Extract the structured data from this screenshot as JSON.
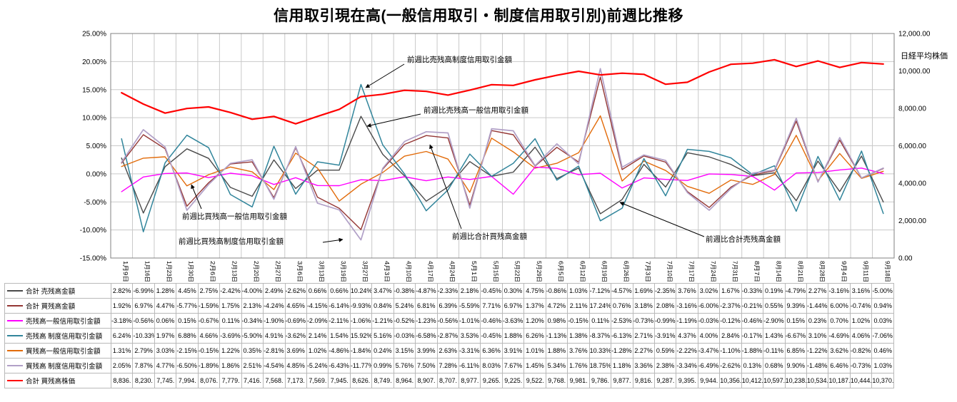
{
  "title": "信用取引現在高(一般信用取引・制度信用取引別)前週比推移",
  "chart_data": {
    "type": "line",
    "categories": [
      "1月9日",
      "1月16日",
      "1月23日",
      "1月30日",
      "2月6日",
      "2月13日",
      "2月20日",
      "2月27日",
      "3月6日",
      "3月13日",
      "3月19日",
      "3月27日",
      "4月3日",
      "4月10日",
      "4月17日",
      "4月24日",
      "5月1日",
      "5月15日",
      "5月22日",
      "5月29日",
      "6月5日",
      "6月12日",
      "6月19日",
      "6月26日",
      "7月3日",
      "7月10日",
      "7月17日",
      "7月24日",
      "7月31日",
      "8月7日",
      "8月14日",
      "8月21日",
      "8月28日",
      "9月4日",
      "9月11日",
      "9月18日"
    ],
    "left_axis": {
      "min": -15,
      "max": 25,
      "ticks": [
        "25.00%",
        "20.00%",
        "15.00%",
        "10.00%",
        "5.00%",
        "0.00%",
        "-5.00%",
        "-10.00%",
        "-15.00%"
      ]
    },
    "right_axis": {
      "min": 0,
      "max": 12000,
      "label": "日経平均株価",
      "ticks": [
        "12,000.00",
        "10,000.00",
        "8,000.00",
        "6,000.00",
        "4,000.00",
        "2,000.00",
        "0.00"
      ]
    },
    "grid": true,
    "legend_position": "table-left",
    "series": [
      {
        "name": "合計 売残高金額",
        "color": "#4a4a4a",
        "axis": "left",
        "values": [
          2.82,
          -6.99,
          1.28,
          4.45,
          2.75,
          -2.42,
          -4.0,
          2.49,
          -2.62,
          0.66,
          0.66,
          10.24,
          3.47,
          -0.38,
          -4.87,
          -2.33,
          2.18,
          -0.45,
          0.3,
          4.75,
          -0.86,
          1.03,
          -7.12,
          -4.57,
          1.69,
          -2.35,
          3.76,
          3.02,
          1.67,
          -0.33,
          0.19,
          -4.79,
          2.27,
          -3.16,
          3.16,
          -5.0
        ]
      },
      {
        "name": "合計 買残高金額",
        "color": "#943634",
        "axis": "left",
        "values": [
          1.92,
          6.97,
          4.47,
          -5.77,
          -1.59,
          1.75,
          2.13,
          -4.24,
          4.65,
          -4.15,
          -6.14,
          -9.93,
          0.84,
          5.24,
          6.81,
          6.39,
          -5.59,
          7.71,
          6.97,
          1.37,
          4.72,
          2.11,
          17.24,
          0.76,
          3.18,
          2.08,
          -3.16,
          -6.0,
          -2.37,
          -0.21,
          0.55,
          9.39,
          -1.44,
          6.0,
          -0.74,
          0.94
        ]
      },
      {
        "name": "売残高一般信用取引金額",
        "color": "#ff00ff",
        "axis": "left",
        "values": [
          -3.18,
          -0.56,
          0.06,
          0.15,
          -0.67,
          0.11,
          -0.34,
          -1.9,
          -0.69,
          -2.09,
          -2.11,
          -1.06,
          -1.21,
          -0.52,
          -1.23,
          -0.56,
          -1.01,
          -0.46,
          -3.63,
          1.2,
          0.98,
          -0.15,
          0.11,
          -2.53,
          -0.73,
          -0.99,
          -1.19,
          -0.03,
          -0.12,
          -0.46,
          -2.9,
          0.15,
          0.23,
          0.7,
          1.02,
          0.03
        ]
      },
      {
        "name": "売残高 制度信用取引金額",
        "color": "#31859b",
        "axis": "left",
        "values": [
          6.24,
          -10.33,
          1.97,
          6.88,
          4.66,
          -3.69,
          -5.9,
          4.91,
          -3.62,
          2.14,
          1.54,
          15.92,
          5.16,
          -0.03,
          -6.58,
          -2.87,
          3.53,
          -0.45,
          1.88,
          6.26,
          -1.13,
          1.38,
          -8.37,
          -6.13,
          2.71,
          -3.91,
          4.37,
          4.0,
          2.84,
          -0.17,
          1.43,
          -6.67,
          3.1,
          -4.69,
          4.06,
          -7.06
        ]
      },
      {
        "name": "買残高一般信用取引金額",
        "color": "#e26b0a",
        "axis": "left",
        "values": [
          1.31,
          2.79,
          3.03,
          -2.15,
          -0.15,
          1.22,
          0.35,
          -2.81,
          3.69,
          1.02,
          -4.86,
          -1.84,
          0.24,
          3.15,
          3.99,
          2.63,
          -3.31,
          6.36,
          3.91,
          1.01,
          1.88,
          3.76,
          10.33,
          -1.28,
          2.27,
          0.59,
          -2.22,
          -3.47,
          -1.1,
          -1.88,
          -0.11,
          6.85,
          -1.22,
          3.62,
          -0.82,
          0.46
        ]
      },
      {
        "name": "買残高 制度信用取引金額",
        "color": "#b1a0c7",
        "axis": "left",
        "values": [
          2.05,
          7.87,
          4.77,
          -6.5,
          -1.89,
          1.86,
          2.51,
          -4.54,
          4.85,
          -5.24,
          -6.43,
          -11.77,
          0.99,
          5.76,
          7.5,
          7.28,
          -6.11,
          8.03,
          7.67,
          1.45,
          5.34,
          1.76,
          18.75,
          1.18,
          3.36,
          2.38,
          -3.34,
          -6.49,
          -2.62,
          0.13,
          0.68,
          9.9,
          -1.48,
          6.46,
          -0.73,
          1.03
        ]
      },
      {
        "name": "合計 買残高株価",
        "color": "#ff0000",
        "axis": "right",
        "values": [
          8836,
          8230,
          7745,
          7994,
          8076,
          7779,
          7416,
          7568,
          7173,
          7569,
          7945,
          8626,
          8749,
          8964,
          8907,
          8707,
          8977,
          9265,
          9225,
          9522,
          9768,
          9981,
          9786,
          9877,
          9816,
          9287,
          9395,
          9944,
          10356,
          10412,
          10597,
          10238,
          10534,
          10187,
          10444,
          10370
        ]
      }
    ],
    "annotations": [
      "前週比売残高制度信用取引金額",
      "前週比売残高一般信用取引金額",
      "前週比買残高一般信用取引金額",
      "前週比買残高制度信用取引金額",
      "前週比合計買残高金額",
      "前週比合計売残高金額"
    ]
  }
}
